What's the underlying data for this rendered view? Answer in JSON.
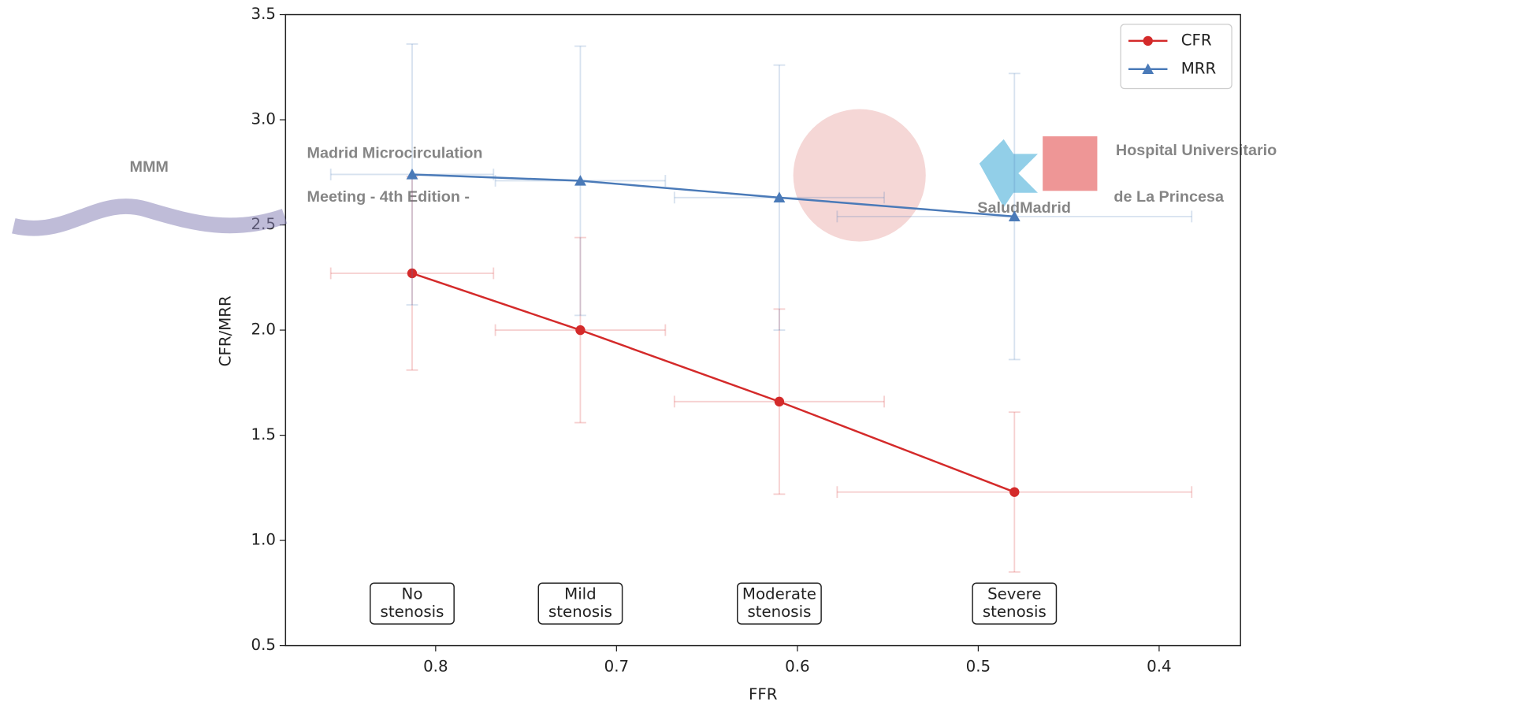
{
  "chart_data": {
    "type": "errorbar-line",
    "x_label": "FFR",
    "y_label": "CFR/MRR",
    "x": [
      0.813,
      0.72,
      0.61,
      0.48
    ],
    "xlim": [
      0.883,
      0.355
    ],
    "xticks": [
      0.8,
      0.7,
      0.6,
      0.5,
      0.4
    ],
    "ylim": [
      0.5,
      3.5
    ],
    "yticks": [
      0.5,
      {
        "value": 1,
        "label": "1.0"
      },
      1.5,
      {
        "value": 2,
        "label": "2.0"
      },
      2.5,
      {
        "value": 3,
        "label": "3.0"
      },
      3.5
    ],
    "series": [
      {
        "name": "CFR",
        "color": "#d42a2a",
        "marker": "circle",
        "values": [
          2.27,
          2.0,
          1.66,
          1.23
        ],
        "yerr": [
          0.46,
          0.44,
          0.44,
          0.38
        ],
        "xerr": [
          0.045,
          0.047,
          0.058,
          0.098
        ]
      },
      {
        "name": "MRR",
        "color": "#4a7ab8",
        "marker": "triangle",
        "values": [
          2.74,
          2.71,
          2.63,
          2.54
        ],
        "yerr": [
          0.62,
          0.64,
          0.63,
          0.68
        ],
        "xerr": [
          0.045,
          0.047,
          0.058,
          0.098
        ]
      }
    ],
    "annotations": [
      [
        "No",
        "stenosis"
      ],
      [
        "Mild",
        "stenosis"
      ],
      [
        "Moderate",
        "stenosis"
      ],
      [
        "Severe",
        "stenosis"
      ]
    ],
    "legend": "upper right"
  },
  "overlay": {
    "logo_left": "MMM",
    "event_line1": "Madrid Microcirculation",
    "event_line2": "Meeting - 4th Edition -",
    "hospital_line1": "Hospital Universitario",
    "hospital_line2": "de La Princesa",
    "brand": "SaludMadrid"
  }
}
